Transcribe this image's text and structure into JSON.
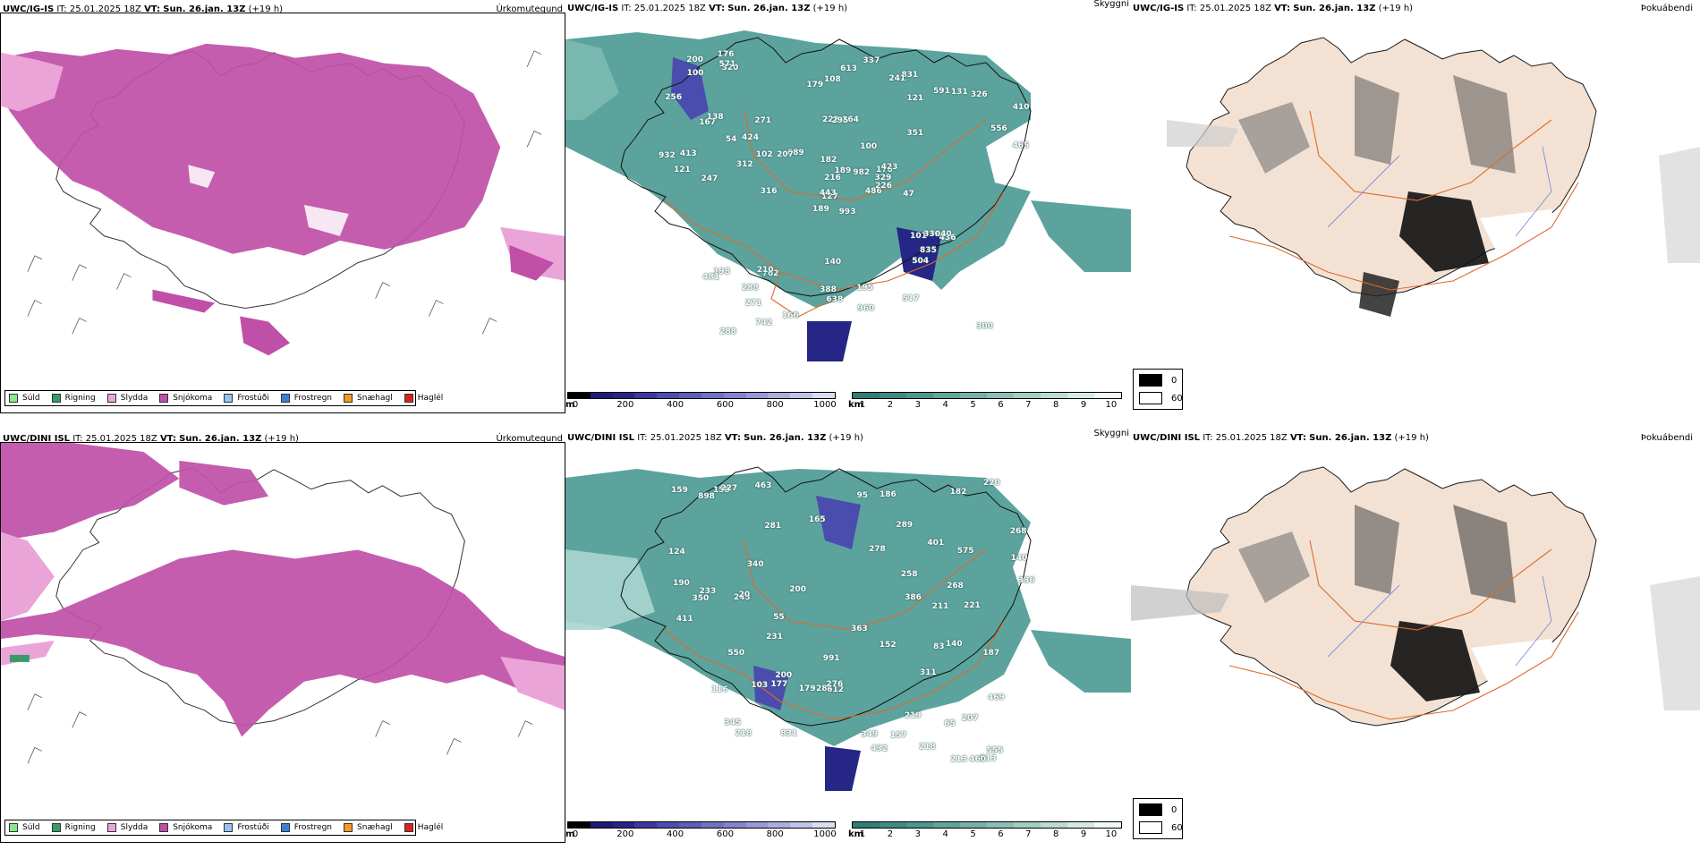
{
  "colors": {
    "snow": "#c04fa8",
    "sleet": "#eba4d8",
    "cloudbase_teal": "#3f938c",
    "cloudbase_light": "#a8d6cf",
    "cloudtop_dark": "#262687",
    "cloudtop_mid": "#6366b8",
    "land_fog": "#f3e2d3",
    "coast": "#1a1a1a",
    "road": "#e0692a",
    "river": "#7d8fd9"
  },
  "rows": [
    {
      "id": "top",
      "precip": {
        "model": "UWC/IG-IS",
        "it_label": "IT:",
        "it_value": "25.01.2025 18Z",
        "vt_label": "VT:",
        "vt_value": "Sun. 26.jan. 13Z",
        "lead": "(+19 h)",
        "name": "Úrkomutegund"
      },
      "cloud": {
        "model": "UWC/IG-IS",
        "it_label": "IT:",
        "it_value": "25.01.2025 18Z",
        "vt_label": "VT:",
        "vt_value": "Sun. 26.jan. 13Z",
        "lead": "(+19 h)",
        "name": "Skyggni",
        "labels": [
          "993",
          "167",
          "127",
          "176",
          "762",
          "831",
          "264",
          "121",
          "486",
          "320",
          "247",
          "410",
          "189",
          "351",
          "288",
          "222",
          "100",
          "198",
          "689",
          "271",
          "295",
          "423",
          "436",
          "138",
          "108",
          "121",
          "101",
          "465",
          "443",
          "388",
          "216",
          "271",
          "591",
          "210",
          "300",
          "340",
          "337",
          "207",
          "312",
          "504",
          "742",
          "932",
          "329",
          "638",
          "226",
          "481",
          "556",
          "256",
          "835",
          "517",
          "288",
          "571",
          "200",
          "195",
          "326",
          "613",
          "316",
          "413",
          "424",
          "131",
          "176",
          "241",
          "179",
          "189",
          "140",
          "166",
          "330",
          "102",
          "100",
          "54",
          "182",
          "960",
          "982",
          "47"
        ]
      },
      "fog": {
        "model": "UWC/IG-IS",
        "it_label": "IT:",
        "it_value": "25.01.2025 18Z",
        "vt_label": "VT:",
        "vt_value": "Sun. 26.jan. 13Z",
        "lead": "(+19 h)",
        "name": "Þokuábendi"
      }
    },
    {
      "id": "bottom",
      "precip": {
        "model": "UWC/DINI ISL",
        "it_label": "IT:",
        "it_value": "25.01.2025 18Z",
        "vt_label": "VT:",
        "vt_value": "Sun. 26.jan. 13Z",
        "lead": "(+19 h)",
        "name": "Úrkomutegund"
      },
      "cloud": {
        "model": "UWC/DINI ISL",
        "it_label": "IT:",
        "it_value": "25.01.2025 18Z",
        "vt_label": "VT:",
        "vt_value": "Sun. 26.jan. 13Z",
        "lead": "(+19 h)",
        "name": "Skyggni",
        "labels": [
          "991",
          "243",
          "158",
          "140",
          "213",
          "281",
          "284",
          "231",
          "177",
          "211",
          "221",
          "95",
          "159",
          "213",
          "55",
          "219",
          "363",
          "336",
          "268",
          "200",
          "460",
          "20",
          "157",
          "103",
          "207",
          "386",
          "349",
          "575",
          "200",
          "179",
          "469",
          "401",
          "190",
          "233",
          "227",
          "550",
          "831",
          "411",
          "555",
          "187",
          "218",
          "612",
          "276",
          "340",
          "463",
          "289",
          "432",
          "268",
          "152",
          "182",
          "140",
          "258",
          "218",
          "898",
          "116",
          "345",
          "186",
          "165",
          "124",
          "83",
          "65",
          "350",
          "220",
          "278",
          "311"
        ]
      },
      "fog": {
        "model": "UWC/DINI ISL",
        "it_label": "IT:",
        "it_value": "25.01.2025 18Z",
        "vt_label": "VT:",
        "vt_value": "Sun. 26.jan. 13Z",
        "lead": "(+19 h)",
        "name": "Þokuábendi"
      }
    }
  ],
  "precip_legend": [
    {
      "label": "Súld",
      "color": "#8ce68c"
    },
    {
      "label": "Rigning",
      "color": "#3a9a6a"
    },
    {
      "label": "Slydda",
      "color": "#eba4d8"
    },
    {
      "label": "Snjókoma",
      "color": "#c04fa8"
    },
    {
      "label": "Frostúði",
      "color": "#96c3f0"
    },
    {
      "label": "Frostregn",
      "color": "#3f7fd0"
    },
    {
      "label": "Snæhagl",
      "color": "#f29a22"
    },
    {
      "label": "Haglél",
      "color": "#e01e1e"
    }
  ],
  "cloudtop_bar": {
    "unit": "m",
    "ticks": [
      "0",
      "200",
      "400",
      "600",
      "800",
      "1000"
    ],
    "colors": [
      "#000000",
      "#1c1c7a",
      "#262687",
      "#3a3a9e",
      "#4b4dae",
      "#5c5fb8",
      "#6e72c2",
      "#8185cc",
      "#9599d6",
      "#aaaedf",
      "#c1c4e8",
      "#dadcf2"
    ]
  },
  "cloudbase_bar": {
    "unit": "km",
    "ticks": [
      "1",
      "2",
      "3",
      "4",
      "5",
      "6",
      "7",
      "8",
      "9",
      "10"
    ],
    "colors": [
      "#2e7d77",
      "#3a8c85",
      "#4a988f",
      "#5ea59b",
      "#74b2a8",
      "#8bbfb5",
      "#a3cdc3",
      "#bcdbd3",
      "#d6e9e4",
      "#f1f7f5"
    ]
  },
  "fog_legend": [
    {
      "value": "0",
      "color": "#000000"
    },
    {
      "value": "60",
      "color": "#ffffff"
    }
  ]
}
